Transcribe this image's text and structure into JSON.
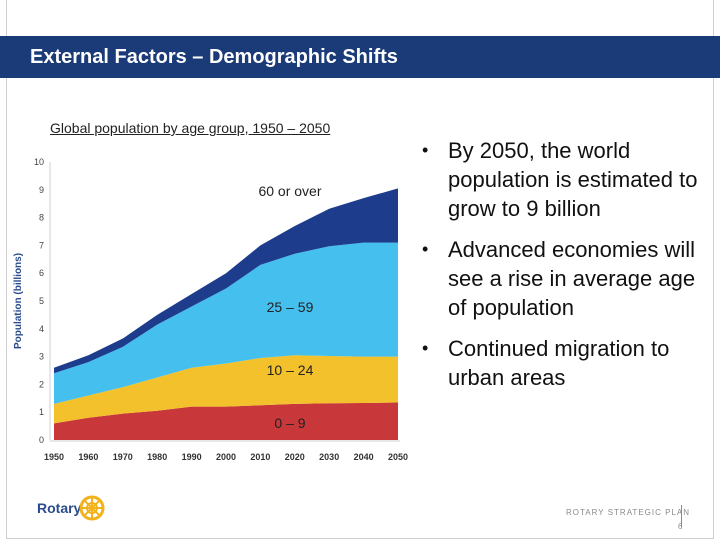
{
  "slide": {
    "title": "External Factors – Demographic Shifts",
    "chart_caption": "Global population by age group, 1950 – 2050",
    "bullets": [
      "By 2050, the world population is estimated to grow to 9 billion",
      "Advanced economies will see a rise in average age of population",
      "Continued migration to urban areas"
    ],
    "logo_text": "Rotary",
    "footer_text": "ROTARY STRATEGIC PLAN",
    "page_number": "6",
    "colors": {
      "title_bar": "#1b3a78",
      "title_text": "#ffffff",
      "rotary_blue": "#2a4c8c",
      "rotary_gold": "#f2b21b"
    }
  },
  "chart_data": {
    "type": "area",
    "stacked": true,
    "ylabel": "Population (billions)",
    "xlabel": "",
    "ylim": [
      0,
      10
    ],
    "yticks": [
      "0",
      "1",
      "2",
      "3",
      "4",
      "5",
      "6",
      "7",
      "8",
      "9",
      "10"
    ],
    "x": [
      "1950",
      "1960",
      "1970",
      "1980",
      "1990",
      "2000",
      "2010",
      "2020",
      "2030",
      "2040",
      "2050"
    ],
    "series": [
      {
        "name": "0 – 9",
        "color": "#c8373a",
        "values": [
          0.6,
          0.8,
          0.95,
          1.05,
          1.2,
          1.2,
          1.25,
          1.3,
          1.32,
          1.33,
          1.35
        ]
      },
      {
        "name": "10 – 24",
        "color": "#f3c12b",
        "values": [
          0.7,
          0.8,
          0.95,
          1.2,
          1.4,
          1.55,
          1.7,
          1.75,
          1.7,
          1.67,
          1.65
        ]
      },
      {
        "name": "25 – 59",
        "color": "#45c0ee",
        "values": [
          1.1,
          1.2,
          1.45,
          1.9,
          2.2,
          2.7,
          3.35,
          3.65,
          3.95,
          4.1,
          4.1
        ]
      },
      {
        "name": "60 or over",
        "color": "#1e3c8c",
        "values": [
          0.2,
          0.25,
          0.3,
          0.35,
          0.45,
          0.55,
          0.7,
          1.0,
          1.35,
          1.6,
          1.95
        ]
      }
    ],
    "series_labels": [
      "0 – 9",
      "10 – 24",
      "25 – 59",
      "60 or over"
    ],
    "grid": false
  }
}
